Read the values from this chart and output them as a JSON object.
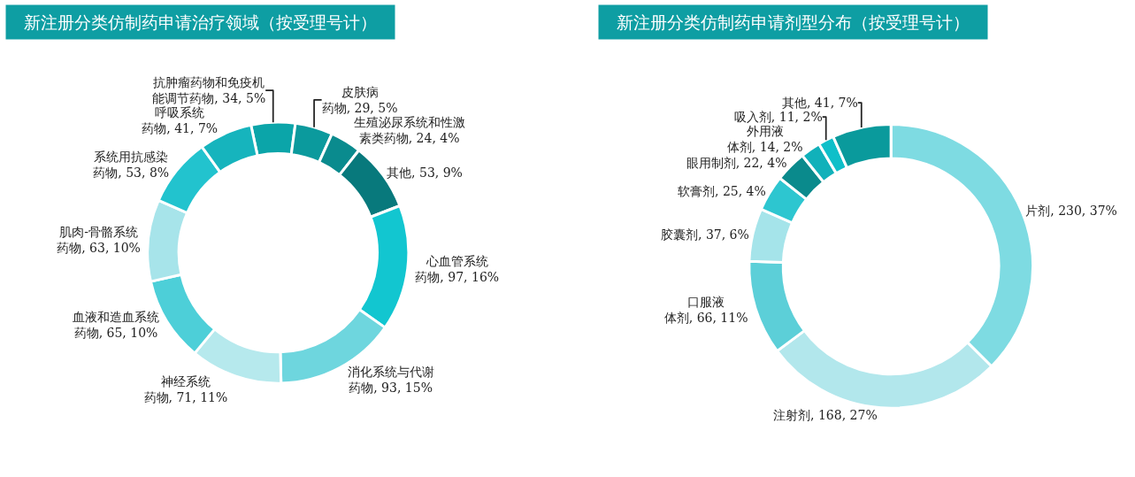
{
  "chart_data": [
    {
      "type": "donut",
      "title": "新注册分类仿制药申请治疗领域（按受理号计）",
      "categories": [
        "抗肿瘤药物和免疫机能调节药物",
        "皮肤病药物",
        "生殖泌尿系统和性激素类药物",
        "其他",
        "心血管系统药物",
        "消化系统与代谢药物",
        "神经系统药物",
        "血液和造血系统药物",
        "肌肉-骨骼系统药物",
        "系统用抗感染药物",
        "呼吸系统药物"
      ],
      "values": [
        34,
        29,
        24,
        53,
        97,
        93,
        71,
        65,
        63,
        53,
        41
      ],
      "value_labels": [
        "34, 5%",
        "29, 5%",
        "24, 4%",
        "53, 9%",
        "97, 16%",
        "93, 15%",
        "71, 11%",
        "65, 10%",
        "63, 10%",
        "53, 8%",
        "41, 7%"
      ],
      "colors": [
        "#0ba5a9",
        "#0b9a9d",
        "#0a8b8e",
        "#08797c",
        "#12c6d0",
        "#6ed6de",
        "#b6e9ed",
        "#4dcfd8",
        "#a7e4ea",
        "#22c3ce",
        "#16b4bd"
      ]
    },
    {
      "type": "donut",
      "title": "新注册分类仿制药申请剂型分布（按受理号计）",
      "categories": [
        "片剂",
        "注射剂",
        "口服液体剂",
        "胶囊剂",
        "软膏剂",
        "眼用制剂",
        "外用液体剂",
        "吸入剂",
        "其他"
      ],
      "values": [
        230,
        168,
        66,
        37,
        25,
        22,
        14,
        11,
        41
      ],
      "value_labels": [
        "230, 37%",
        "168, 27%",
        "66, 11%",
        "37, 6%",
        "25, 4%",
        "22, 4%",
        "14, 2%",
        "11, 2%",
        "41, 7%"
      ],
      "colors": [
        "#7edbe2",
        "#b2e7ec",
        "#5ccfd8",
        "#a5e4ea",
        "#2dc6d0",
        "#0a8a8c",
        "#11b1ba",
        "#0fbfc9",
        "#0a9a9c"
      ]
    }
  ]
}
